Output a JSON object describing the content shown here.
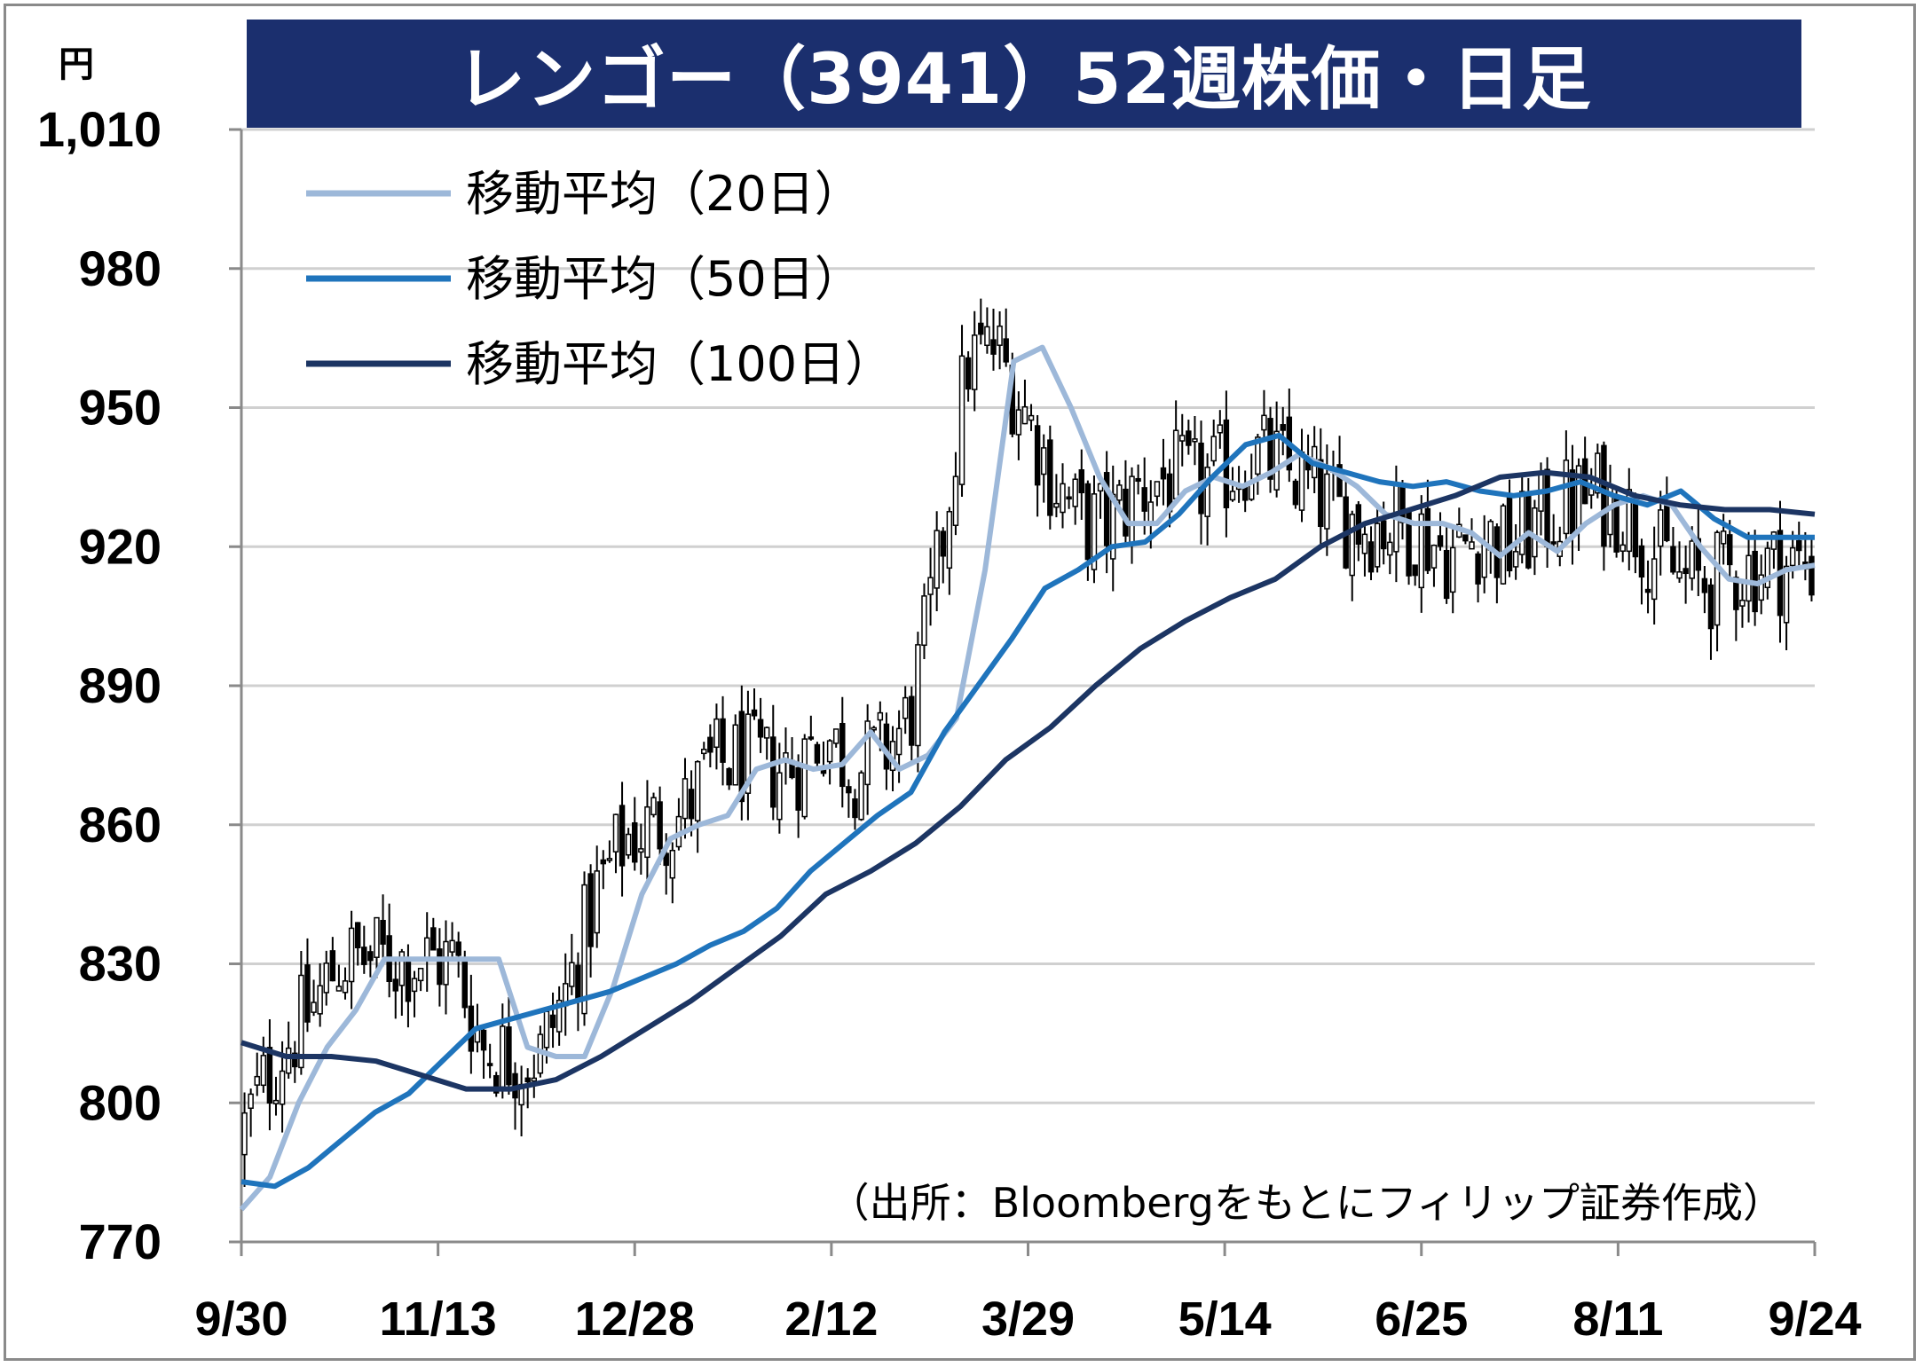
{
  "chart_data": {
    "type": "candlestick",
    "title": "レンゴー（3941）52週株価・日足",
    "ylabel": "円",
    "ylim": [
      770,
      1010
    ],
    "yticks": [
      1010,
      980,
      950,
      920,
      890,
      860,
      830,
      800,
      770
    ],
    "ytick_labels": [
      "1,010",
      "980",
      "950",
      "920",
      "890",
      "860",
      "830",
      "800",
      "770"
    ],
    "xtick_labels": [
      "9/30",
      "11/13",
      "12/28",
      "2/12",
      "3/29",
      "5/14",
      "6/25",
      "8/11",
      "9/24"
    ],
    "grid": true,
    "legend_position": "top-left",
    "source": "（出所：Bloombergをもとにフィリップ証券作成）",
    "series": [
      {
        "name": "移動平均（20日）",
        "color": "#9db8d9",
        "values": [
          777,
          784,
          800,
          812,
          820,
          831,
          831,
          831,
          831,
          831,
          812,
          810,
          810,
          825,
          845,
          857,
          860,
          862,
          872,
          874,
          872,
          873,
          880,
          872,
          875,
          883,
          915,
          960,
          963,
          950,
          935,
          925,
          925,
          932,
          935,
          933,
          936,
          940,
          937,
          933,
          927,
          925,
          925,
          923,
          918,
          923,
          919,
          925,
          929,
          931,
          929,
          920,
          913,
          912,
          915,
          916
        ]
      },
      {
        "name": "移動平均（50日）",
        "color": "#1f74bc",
        "values": [
          783,
          782,
          786,
          792,
          798,
          802,
          809,
          816,
          818,
          820,
          822,
          824,
          827,
          830,
          834,
          837,
          842,
          850,
          856,
          862,
          867,
          880,
          890,
          900,
          911,
          915,
          920,
          921,
          927,
          935,
          942,
          944,
          938,
          936,
          934,
          933,
          934,
          932,
          931,
          932,
          934,
          931,
          929,
          932,
          926,
          922,
          922,
          922
        ]
      },
      {
        "name": "移動平均（100日）",
        "color": "#1c3563",
        "values": [
          813,
          810,
          810,
          809,
          806,
          803,
          803,
          805,
          810,
          816,
          822,
          829,
          836,
          845,
          850,
          856,
          864,
          874,
          881,
          890,
          898,
          904,
          909,
          913,
          920,
          925,
          928,
          931,
          935,
          936,
          935,
          931,
          929,
          928,
          928,
          927
        ]
      }
    ]
  }
}
